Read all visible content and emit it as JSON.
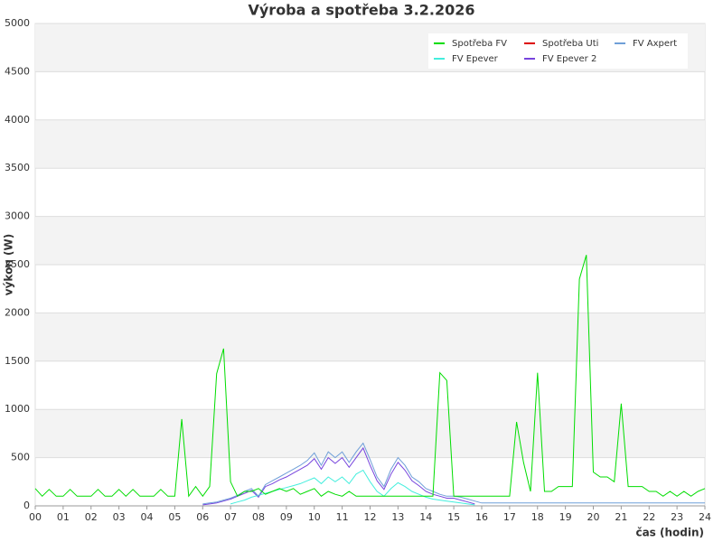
{
  "chart_data": {
    "type": "line",
    "title": "Výroba a spotřeba 3.2.2026",
    "xlabel": "čas (hodin)",
    "ylabel": "výkon (W)",
    "x": [
      0,
      0.25,
      0.5,
      0.75,
      1,
      1.25,
      1.5,
      1.75,
      2,
      2.25,
      2.5,
      2.75,
      3,
      3.25,
      3.5,
      3.75,
      4,
      4.25,
      4.5,
      4.75,
      5,
      5.25,
      5.5,
      5.75,
      6,
      6.25,
      6.5,
      6.75,
      7,
      7.25,
      7.5,
      7.75,
      8,
      8.25,
      8.5,
      8.75,
      9,
      9.25,
      9.5,
      9.75,
      10,
      10.25,
      10.5,
      10.75,
      11,
      11.25,
      11.5,
      11.75,
      12,
      12.25,
      12.5,
      12.75,
      13,
      13.25,
      13.5,
      13.75,
      14,
      14.25,
      14.5,
      14.75,
      15,
      15.25,
      15.5,
      15.75,
      16,
      16.25,
      16.5,
      16.75,
      17,
      17.25,
      17.5,
      17.75,
      18,
      18.25,
      18.5,
      18.75,
      19,
      19.25,
      19.5,
      19.75,
      20,
      20.25,
      20.5,
      20.75,
      21,
      21.25,
      21.5,
      21.75,
      22,
      22.25,
      22.5,
      22.75,
      23,
      23.25,
      23.5,
      23.75,
      24
    ],
    "series": [
      {
        "name": "Spotřeba FV",
        "color": "#00dd00",
        "values": [
          180,
          100,
          170,
          100,
          100,
          170,
          100,
          100,
          100,
          170,
          100,
          100,
          170,
          100,
          170,
          100,
          100,
          100,
          170,
          100,
          100,
          900,
          100,
          200,
          100,
          200,
          1370,
          1630,
          250,
          100,
          150,
          150,
          180,
          120,
          150,
          180,
          150,
          180,
          120,
          150,
          180,
          100,
          150,
          120,
          100,
          150,
          100,
          100,
          100,
          100,
          100,
          100,
          100,
          100,
          100,
          100,
          100,
          100,
          1380,
          1300,
          100,
          100,
          100,
          100,
          100,
          100,
          100,
          100,
          100,
          870,
          450,
          150,
          1380,
          150,
          150,
          200,
          200,
          200,
          2350,
          2600,
          350,
          300,
          300,
          250,
          1060,
          200,
          200,
          200,
          150,
          150,
          100,
          150,
          100,
          150,
          100,
          150,
          180
        ]
      },
      {
        "name": "Spotřeba Uti",
        "color": "#dd0000",
        "values": [
          null,
          null,
          null,
          null,
          null,
          null,
          null,
          null,
          null,
          null,
          null,
          null,
          null,
          null,
          null,
          null,
          null,
          null,
          null,
          null,
          null,
          null,
          null,
          null,
          null,
          null,
          null,
          null,
          null,
          null,
          null,
          null,
          null,
          null,
          null,
          null,
          null,
          null,
          null,
          null,
          null,
          null,
          null,
          null,
          null,
          null,
          null,
          null,
          null,
          null,
          null,
          null,
          null,
          null,
          null,
          null,
          null,
          null,
          null,
          null,
          null,
          null,
          null,
          null,
          null,
          null,
          null,
          null,
          null,
          null,
          null,
          null,
          null,
          null,
          null,
          null,
          null,
          null,
          null,
          null,
          null,
          null,
          null,
          null,
          null,
          null,
          null,
          null,
          null,
          null,
          null,
          null,
          null,
          null,
          null,
          null,
          null
        ]
      },
      {
        "name": "FV Axpert",
        "color": "#6f9fd8",
        "values": [
          null,
          null,
          null,
          null,
          null,
          null,
          null,
          null,
          null,
          null,
          null,
          null,
          null,
          null,
          null,
          null,
          null,
          null,
          null,
          null,
          null,
          null,
          null,
          null,
          20,
          30,
          40,
          60,
          80,
          110,
          150,
          180,
          100,
          220,
          260,
          300,
          340,
          380,
          420,
          470,
          550,
          420,
          560,
          500,
          560,
          450,
          560,
          650,
          480,
          300,
          200,
          380,
          500,
          420,
          300,
          250,
          180,
          150,
          120,
          100,
          100,
          90,
          70,
          50,
          30,
          30,
          30,
          30,
          30,
          30,
          30,
          30,
          30,
          30,
          30,
          30,
          30,
          30,
          30,
          30,
          30,
          30,
          30,
          30,
          30,
          30,
          30,
          30,
          30,
          30,
          30,
          30,
          30,
          30,
          30,
          30,
          30
        ]
      },
      {
        "name": "FV Epever",
        "color": "#44eedd",
        "values": [
          null,
          null,
          null,
          null,
          null,
          null,
          null,
          null,
          null,
          null,
          null,
          null,
          null,
          null,
          null,
          null,
          null,
          null,
          null,
          null,
          null,
          null,
          null,
          null,
          null,
          null,
          null,
          null,
          20,
          40,
          60,
          90,
          110,
          130,
          150,
          170,
          190,
          210,
          230,
          260,
          290,
          230,
          300,
          250,
          300,
          230,
          330,
          370,
          250,
          150,
          100,
          180,
          240,
          200,
          150,
          120,
          90,
          70,
          60,
          50,
          40,
          30,
          20,
          10,
          null,
          null,
          null,
          null,
          null,
          null,
          null,
          null,
          null,
          null,
          null,
          null,
          null,
          null,
          null,
          null,
          null,
          null,
          null,
          null,
          null,
          null,
          null,
          null,
          null,
          null,
          null,
          null,
          null,
          null,
          null,
          null,
          null
        ]
      },
      {
        "name": "FV Epever 2",
        "color": "#7744dd",
        "values": [
          null,
          null,
          null,
          null,
          null,
          null,
          null,
          null,
          null,
          null,
          null,
          null,
          null,
          null,
          null,
          null,
          null,
          null,
          null,
          null,
          null,
          null,
          null,
          null,
          10,
          20,
          30,
          50,
          70,
          100,
          130,
          160,
          90,
          200,
          230,
          270,
          300,
          340,
          380,
          420,
          490,
          380,
          500,
          440,
          500,
          400,
          500,
          600,
          420,
          260,
          170,
          330,
          450,
          370,
          260,
          210,
          150,
          120,
          100,
          80,
          80,
          60,
          40,
          20,
          null,
          null,
          null,
          null,
          null,
          null,
          null,
          null,
          null,
          null,
          null,
          null,
          null,
          null,
          null,
          null,
          null,
          null,
          null,
          null,
          null,
          null,
          null,
          null,
          null,
          null,
          null,
          null,
          null,
          null,
          null,
          null,
          null
        ]
      }
    ],
    "xlim": [
      0,
      24
    ],
    "xticks": [
      {
        "value": 0,
        "label": "00"
      },
      {
        "value": 1,
        "label": "01"
      },
      {
        "value": 2,
        "label": "02"
      },
      {
        "value": 3,
        "label": "03"
      },
      {
        "value": 4,
        "label": "04"
      },
      {
        "value": 5,
        "label": "05"
      },
      {
        "value": 6,
        "label": "06"
      },
      {
        "value": 7,
        "label": "07"
      },
      {
        "value": 8,
        "label": "08"
      },
      {
        "value": 9,
        "label": "09"
      },
      10,
      11,
      12,
      13,
      14,
      15,
      16,
      17,
      18,
      19,
      20,
      21,
      22,
      23,
      24
    ],
    "ylim": [
      0,
      5000
    ],
    "yticks": [
      0,
      500,
      1000,
      1500,
      2000,
      2500,
      3000,
      3500,
      4000,
      4500,
      5000
    ],
    "grid": true,
    "legend": "upper right"
  }
}
